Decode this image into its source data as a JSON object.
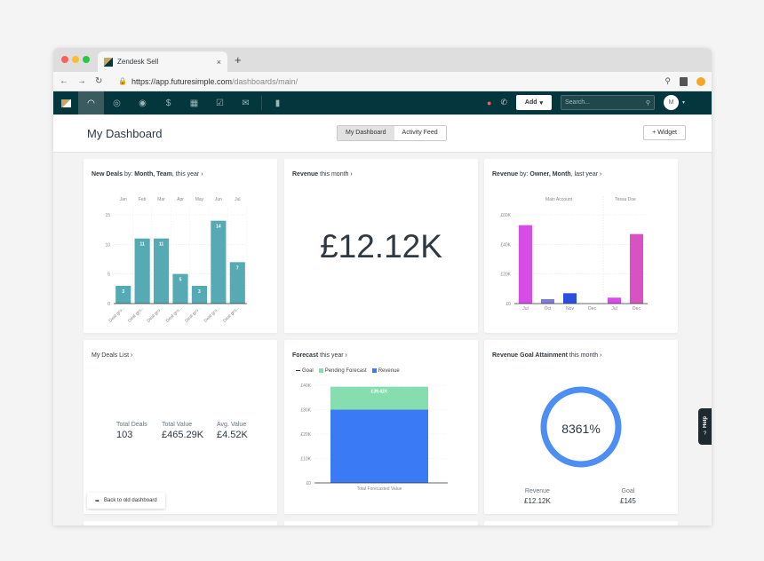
{
  "browser": {
    "tab_title": "Zendesk Sell",
    "tab_close": "×",
    "new_tab": "+",
    "url_host": "https://app.futuresimple.com",
    "url_path": "/dashboards/main/"
  },
  "appnav": {
    "add_label": "Add",
    "search_placeholder": "Search...",
    "avatar_initial": "M"
  },
  "header": {
    "title": "My Dashboard",
    "tabs": [
      "My Dashboard",
      "Activity Feed"
    ],
    "widget_label": "+ Widget"
  },
  "cards": {
    "new_deals": {
      "title_bold": "New Deals",
      "title_rest": " by: ",
      "title_bold2": "Month, Team",
      "title_tail": ", this year ›"
    },
    "revenue": {
      "title_bold": "Revenue",
      "title_rest": " this month ›",
      "value": "£12.12K"
    },
    "revenue_owner": {
      "title_bold": "Revenue",
      "title_rest": " by: ",
      "title_bold2": "Owner, Month",
      "title_tail": ", last year ›"
    },
    "deals_list": {
      "title": "My Deals List ›",
      "stats": [
        {
          "label": "Total Deals",
          "value": "103"
        },
        {
          "label": "Total Value",
          "value": "£465.29K"
        },
        {
          "label": "Avg. Value",
          "value": "£4.52K"
        }
      ]
    },
    "forecast": {
      "title_bold": "Forecast",
      "title_rest": " this year ›",
      "legend": [
        "Goal",
        "Pending Forecast",
        "Revenue"
      ]
    },
    "goal": {
      "title_bold": "Revenue Goal Attainment",
      "title_rest": " this month ›",
      "percent": "8361%",
      "stats": [
        {
          "label": "Revenue",
          "value": "£12.12K"
        },
        {
          "label": "Goal",
          "value": "£145"
        }
      ]
    }
  },
  "back_button": "Back to old dashboard",
  "help_label": "Help",
  "chart_data": [
    {
      "type": "bar",
      "categories": [
        "Jan",
        "Feb",
        "Mar",
        "Apr",
        "May",
        "Jun",
        "Jul"
      ],
      "values": [
        3,
        11,
        11,
        5,
        3,
        14,
        7
      ],
      "x_tick_labels": [
        "Deal gro...",
        "Deal gro...",
        "Deal gro...",
        "Deal gro...",
        "Deal gro...",
        "Deal gro...",
        "Deal gro..."
      ],
      "yticks": [
        0,
        5,
        10,
        15
      ],
      "ylim": [
        0,
        15
      ],
      "color": "#56aab4"
    },
    {
      "type": "bar",
      "groups": [
        "Main Account",
        "Tessa Doe"
      ],
      "categories": [
        "Jul",
        "Oct",
        "Nov",
        "Dec",
        "Jul",
        "Dec"
      ],
      "values": [
        53000,
        3000,
        7000,
        0,
        4000,
        47000
      ],
      "colors": [
        "#d54ce6",
        "#7b7ee0",
        "#2d4de0",
        "#d54ce6",
        "#d54ce6",
        "#d952c4"
      ],
      "yticks": [
        "£0",
        "£20K",
        "£40K",
        "£60K"
      ],
      "ylim": [
        0,
        60000
      ]
    },
    {
      "type": "bar",
      "categories": [
        "Total Forecasted Value"
      ],
      "series": [
        {
          "name": "Revenue",
          "values": [
            30000
          ],
          "color": "#3b7af5"
        },
        {
          "name": "Pending Forecast",
          "values": [
            9400
          ],
          "color": "#86deb0"
        }
      ],
      "data_label": "£39.42K",
      "yticks": [
        "£0",
        "£10K",
        "£20K",
        "£30K",
        "£40K"
      ],
      "ylim": [
        0,
        40000
      ]
    },
    {
      "type": "pie",
      "values": [
        100
      ],
      "label": "8361%",
      "color": "#4d8ef2"
    }
  ]
}
